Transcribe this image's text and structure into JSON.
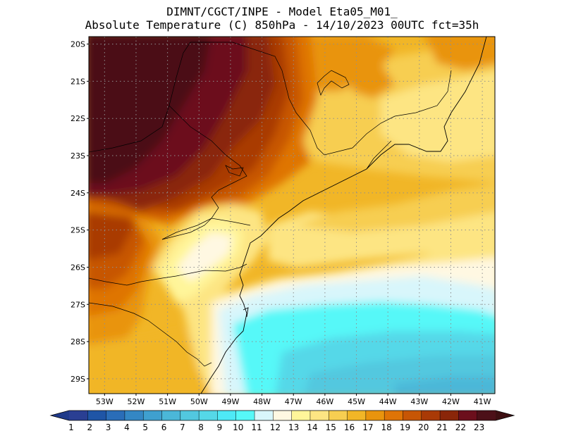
{
  "title": {
    "line1": "DIMNT/CGCT/INPE -  Model Eta05_M01_",
    "line2": "Absolute Temperature (C) 850hPa -  14/10/2023 00UTC fct=35h"
  },
  "map": {
    "lat_labels": [
      "20S",
      "21S",
      "22S",
      "23S",
      "24S",
      "25S",
      "26S",
      "27S",
      "28S",
      "29S"
    ],
    "lon_labels": [
      "53W",
      "52W",
      "51W",
      "50W",
      "49W",
      "48W",
      "47W",
      "46W",
      "45W",
      "44W",
      "43W",
      "42W",
      "41W"
    ],
    "lat_range": [
      -29.4,
      -19.8
    ],
    "lon_range": [
      -53.5,
      -40.6
    ]
  },
  "colorbar": {
    "labels": [
      "1",
      "2",
      "3",
      "4",
      "5",
      "6",
      "7",
      "8",
      "9",
      "10",
      "11",
      "12",
      "13",
      "14",
      "15",
      "16",
      "17",
      "18",
      "19",
      "20",
      "21",
      "22",
      "23"
    ],
    "colors": [
      "#2a3f93",
      "#1f55a6",
      "#2a6db8",
      "#3487c4",
      "#3fa0cf",
      "#4bb7d8",
      "#52c8df",
      "#55d8e8",
      "#4ee9f6",
      "#56f8f8",
      "#d8f6fb",
      "#fff8e2",
      "#fff59a",
      "#fde583",
      "#f7ce51",
      "#f1b627",
      "#e9940d",
      "#df7406",
      "#c75605",
      "#a93a06",
      "#8a2609",
      "#6c0f1c",
      "#4c1018"
    ]
  }
}
